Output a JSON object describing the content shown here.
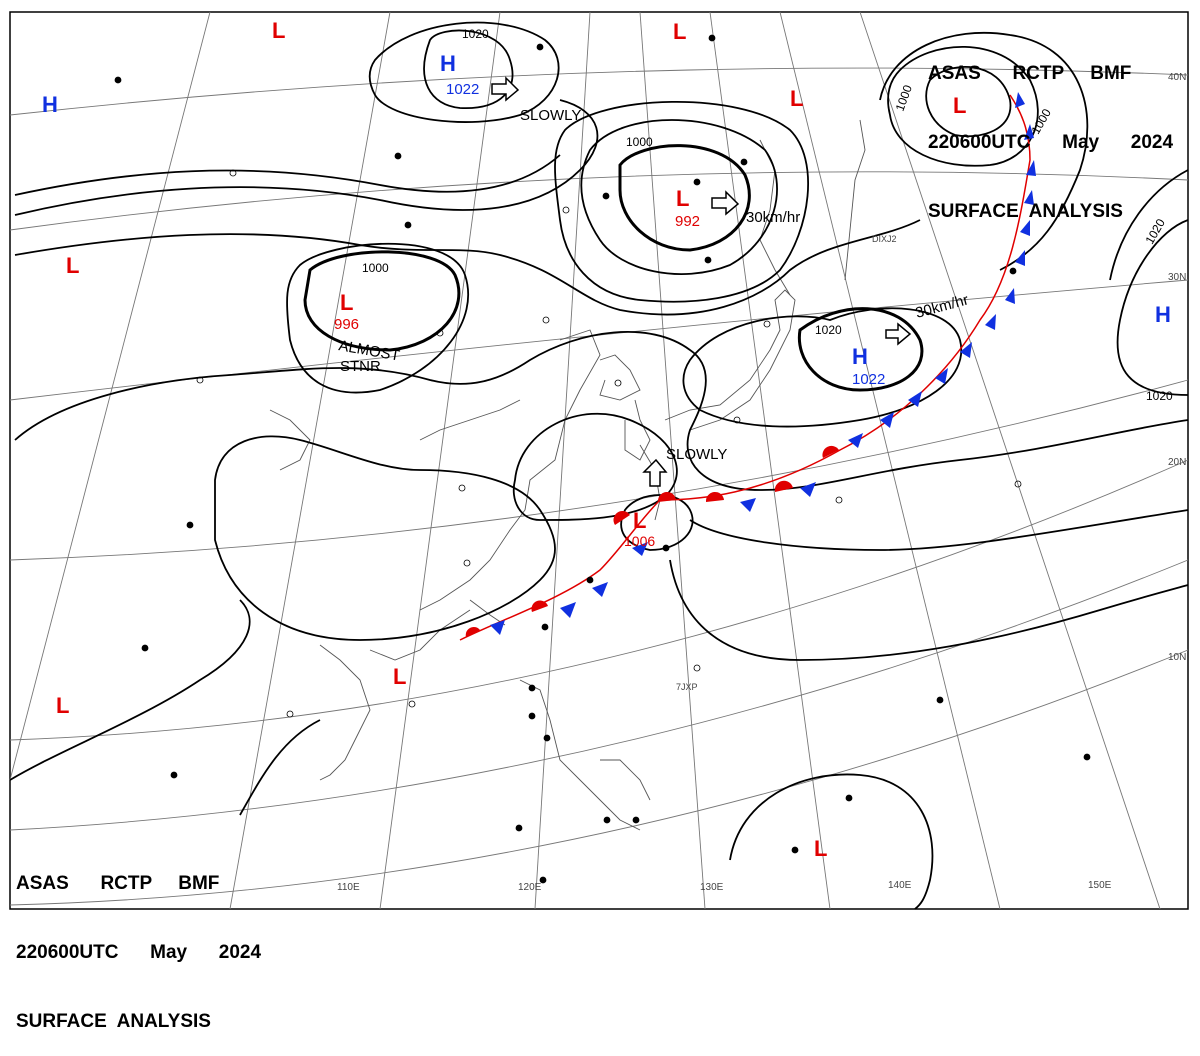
{
  "header": {
    "line1": "ASAS      RCTP     BMF",
    "line2": "220600UTC      May      2024",
    "line3": "SURFACE  ANALYSIS"
  },
  "colors": {
    "low": "#e00000",
    "high": "#1030e0",
    "isobar": "#000000",
    "coast": "#555555",
    "grid": "#777777"
  },
  "symbols": {
    "low_letter": "L",
    "high_letter": "H"
  },
  "pressure_centers": [
    {
      "type": "H",
      "value": "1022"
    },
    {
      "type": "L",
      "value": "996"
    },
    {
      "type": "L",
      "value": "992"
    },
    {
      "type": "H",
      "value": "1022"
    },
    {
      "type": "L",
      "value": "1006"
    }
  ],
  "isobar_labels": [
    "1020",
    "1000",
    "1000",
    "1000",
    "1000",
    "1020",
    "1020",
    "1020"
  ],
  "motion_labels": [
    "SLOWLY",
    "30km/hr",
    "ALMOST",
    "STNR",
    "30km/hr",
    "SLOWLY"
  ],
  "longitude_labels": [
    "110E",
    "120E",
    "130E",
    "140E",
    "150E"
  ],
  "latitude_labels": [
    "40N",
    "30N",
    "20N",
    "10N"
  ],
  "station_ids": [
    "DIXJ2",
    "7JXP"
  ]
}
